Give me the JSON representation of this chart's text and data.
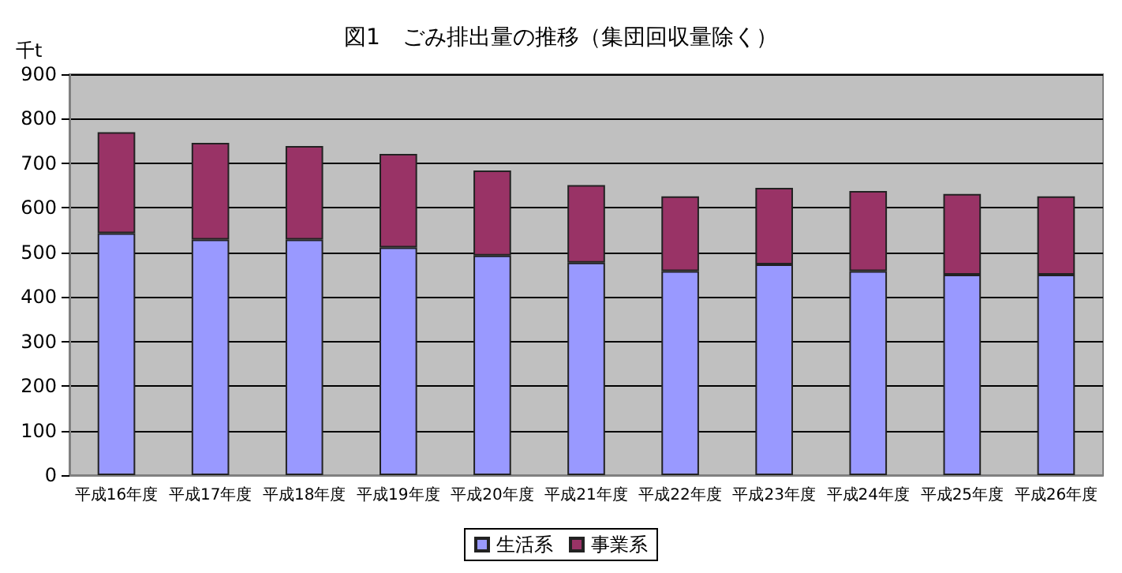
{
  "chart_data": {
    "type": "bar",
    "title": "図1　ごみ排出量の推移（集団回収量除く）",
    "ylabel": "千t",
    "categories": [
      "平成16年度",
      "平成17年度",
      "平成18年度",
      "平成19年度",
      "平成20年度",
      "平成21年度",
      "平成22年度",
      "平成23年度",
      "平成24年度",
      "平成25年度",
      "平成26年度"
    ],
    "series": [
      {
        "name": "生活系",
        "color": "#9999ff",
        "values": [
          543,
          529,
          529,
          511,
          493,
          477,
          458,
          473,
          458,
          450,
          450
        ]
      },
      {
        "name": "事業系",
        "color": "#993366",
        "values": [
          227,
          217,
          210,
          210,
          191,
          174,
          168,
          172,
          180,
          181,
          176
        ]
      }
    ],
    "stacked": true,
    "ylim": [
      0,
      900
    ],
    "yticks": [
      0,
      100,
      200,
      300,
      400,
      500,
      600,
      700,
      800,
      900
    ],
    "grid": "y",
    "legend": "bottom"
  }
}
